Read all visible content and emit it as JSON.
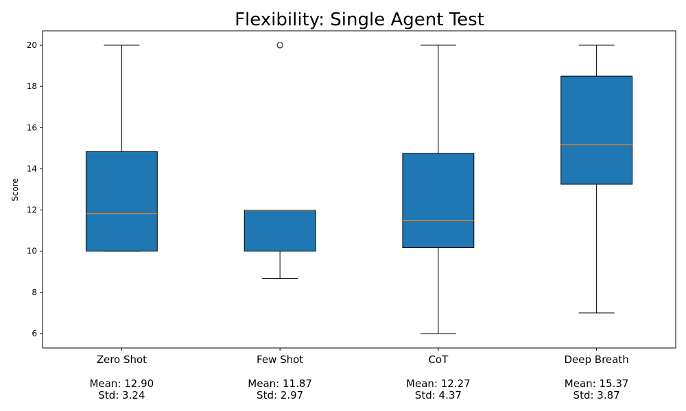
{
  "chart_data": {
    "type": "boxplot",
    "title": "Flexibility: Single Agent Test",
    "ylabel": "Score",
    "ylim": [
      5.3,
      20.7
    ],
    "yticks": [
      6,
      8,
      10,
      12,
      14,
      16,
      18,
      20
    ],
    "grid": false,
    "box_color": "#1f77b4",
    "median_color": "#ff7f0e",
    "categories": [
      "Zero Shot",
      "Few Shot",
      "CoT",
      "Deep Breath"
    ],
    "stats_lines": [
      [
        "Mean: 12.90",
        "Std: 3.24"
      ],
      [
        "Mean: 11.87",
        "Std: 2.97"
      ],
      [
        "Mean: 12.27",
        "Std: 4.37"
      ],
      [
        "Mean: 15.37",
        "Std: 3.87"
      ]
    ],
    "boxes": [
      {
        "whisker_low": 10.0,
        "q1": 10.0,
        "median": 11.83,
        "q3": 14.83,
        "whisker_high": 20.0,
        "outliers": []
      },
      {
        "whisker_low": 8.67,
        "q1": 10.0,
        "median": 12.0,
        "q3": 12.0,
        "whisker_high": 12.0,
        "outliers": [
          20.0
        ]
      },
      {
        "whisker_low": 6.0,
        "q1": 10.17,
        "median": 11.5,
        "q3": 14.75,
        "whisker_high": 20.0,
        "outliers": []
      },
      {
        "whisker_low": 7.0,
        "q1": 13.25,
        "median": 15.17,
        "q3": 18.5,
        "whisker_high": 20.0,
        "outliers": []
      }
    ]
  }
}
